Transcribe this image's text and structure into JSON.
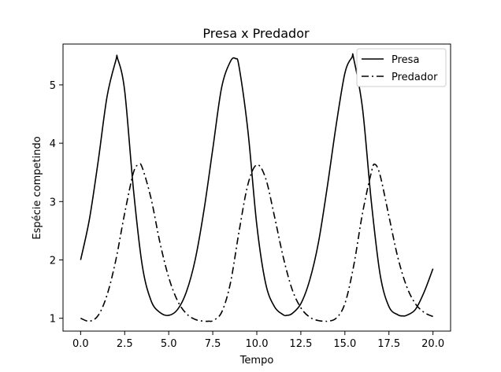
{
  "chart_data": {
    "type": "line",
    "title": "Presa x Predador",
    "xlabel": "Tempo",
    "ylabel": "Espécie competindo",
    "xlim": [
      -1.0,
      21.0
    ],
    "ylim": [
      0.78,
      5.7
    ],
    "xticks": [
      0.0,
      2.5,
      5.0,
      7.5,
      10.0,
      12.5,
      15.0,
      17.5,
      20.0
    ],
    "xtick_labels": [
      "0.0",
      "2.5",
      "5.0",
      "7.5",
      "10.0",
      "12.5",
      "15.0",
      "17.5",
      "20.0"
    ],
    "yticks": [
      1,
      2,
      3,
      4,
      5
    ],
    "ytick_labels": [
      "1",
      "2",
      "3",
      "4",
      "5"
    ],
    "grid": false,
    "legend_position": "top-right",
    "series": [
      {
        "name": "Presa",
        "color": "#000000",
        "linestyle": "solid",
        "x": [
          0.0,
          0.5,
          1.0,
          1.5,
          2.0,
          2.1,
          2.5,
          3.0,
          3.5,
          4.0,
          4.5,
          5.0,
          5.5,
          6.0,
          6.5,
          7.0,
          7.5,
          8.0,
          8.5,
          8.8,
          9.0,
          9.5,
          10.0,
          10.5,
          11.0,
          11.5,
          11.7,
          12.0,
          12.5,
          13.0,
          13.5,
          14.0,
          14.5,
          15.0,
          15.4,
          15.5,
          16.0,
          16.5,
          17.0,
          17.5,
          18.0,
          18.3,
          18.5,
          19.0,
          19.5,
          20.0
        ],
        "y": [
          2.0,
          2.7,
          3.7,
          4.8,
          5.42,
          5.45,
          4.9,
          3.2,
          1.9,
          1.3,
          1.1,
          1.05,
          1.15,
          1.45,
          2.0,
          2.85,
          3.9,
          4.95,
          5.4,
          5.45,
          5.3,
          4.2,
          2.6,
          1.6,
          1.2,
          1.06,
          1.05,
          1.08,
          1.25,
          1.65,
          2.3,
          3.25,
          4.3,
          5.2,
          5.47,
          5.45,
          4.6,
          3.0,
          1.75,
          1.2,
          1.06,
          1.04,
          1.05,
          1.15,
          1.45,
          1.85
        ]
      },
      {
        "name": "Predador",
        "color": "#000000",
        "linestyle": "dashdot",
        "x": [
          0.0,
          0.5,
          1.0,
          1.5,
          2.0,
          2.5,
          3.0,
          3.3,
          3.5,
          4.0,
          4.5,
          5.0,
          5.5,
          6.0,
          6.5,
          7.0,
          7.3,
          7.5,
          8.0,
          8.5,
          9.0,
          9.5,
          10.0,
          10.5,
          11.0,
          11.5,
          12.0,
          12.5,
          13.0,
          13.5,
          13.9,
          14.0,
          14.5,
          15.0,
          15.5,
          16.0,
          16.5,
          16.7,
          17.0,
          17.5,
          18.0,
          18.5,
          19.0,
          19.5,
          20.0
        ],
        "y": [
          1.0,
          0.95,
          1.05,
          1.4,
          2.0,
          2.8,
          3.5,
          3.63,
          3.58,
          3.05,
          2.3,
          1.7,
          1.3,
          1.08,
          0.98,
          0.95,
          0.95,
          0.96,
          1.1,
          1.6,
          2.5,
          3.3,
          3.63,
          3.4,
          2.75,
          2.05,
          1.5,
          1.18,
          1.02,
          0.96,
          0.95,
          0.95,
          1.0,
          1.25,
          1.9,
          2.8,
          3.5,
          3.64,
          3.45,
          2.75,
          2.05,
          1.55,
          1.25,
          1.1,
          1.03
        ]
      }
    ]
  }
}
